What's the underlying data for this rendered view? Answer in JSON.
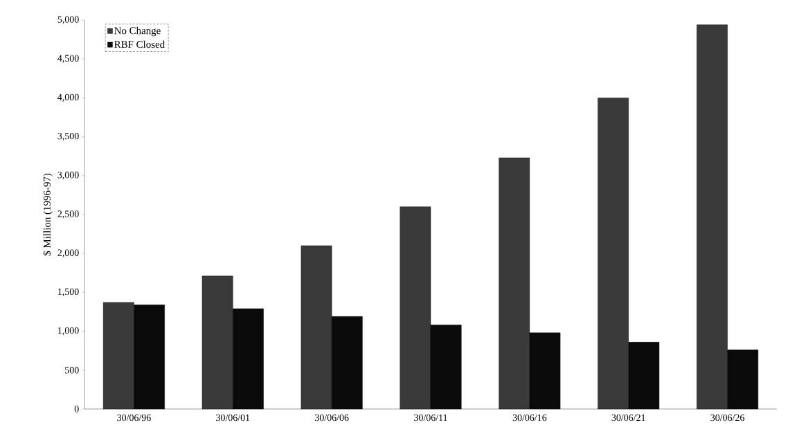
{
  "chart_data": {
    "type": "bar",
    "ylabel": "$ Million (1996-97)",
    "categories": [
      "30/06/96",
      "30/06/01",
      "30/06/06",
      "30/06/11",
      "30/06/16",
      "30/06/21",
      "30/06/26"
    ],
    "series": [
      {
        "name": "No Change",
        "color": "#3a3a3a",
        "values": [
          1370,
          1710,
          2100,
          2600,
          3230,
          4000,
          4940
        ]
      },
      {
        "name": "RBF Closed",
        "color": "#0a0a0a",
        "values": [
          1340,
          1290,
          1190,
          1080,
          980,
          860,
          760
        ]
      }
    ],
    "ylim": [
      0,
      5000
    ],
    "yticks": [
      {
        "value": 0,
        "label": "0"
      },
      {
        "value": 500,
        "label": "500"
      },
      {
        "value": 1000,
        "label": "1,000"
      },
      {
        "value": 1500,
        "label": "1,500"
      },
      {
        "value": 2000,
        "label": "2,000"
      },
      {
        "value": 2500,
        "label": "2,500"
      },
      {
        "value": 3000,
        "label": "3,000"
      },
      {
        "value": 3500,
        "label": "3,500"
      },
      {
        "value": 4000,
        "label": "4,000"
      },
      {
        "value": 4500,
        "label": "4,500"
      },
      {
        "value": 5000,
        "label": "5,000"
      }
    ],
    "grid": false,
    "legend": "top left"
  }
}
